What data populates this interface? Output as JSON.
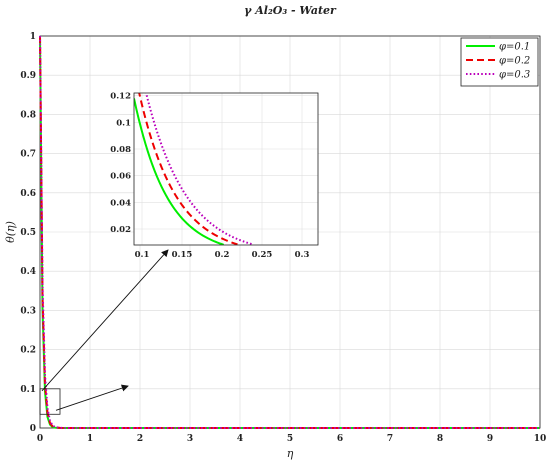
{
  "chart_data": {
    "type": "line",
    "title": "γ Al₂O₃ - Water",
    "xlabel": "η",
    "ylabel": "θ(η)",
    "xlim": [
      0,
      10
    ],
    "ylim": [
      0,
      1
    ],
    "xticks": [
      "0",
      "1",
      "2",
      "3",
      "4",
      "5",
      "6",
      "7",
      "8",
      "9",
      "10"
    ],
    "yticks": [
      "0",
      "0.1",
      "0.2",
      "0.3",
      "0.4",
      "0.5",
      "0.6",
      "0.7",
      "0.8",
      "0.9",
      "1"
    ],
    "grid": true,
    "legend_position": "top-right",
    "series": [
      {
        "name": "φ=0.1",
        "color": "#00ee00",
        "dash": "solid",
        "x": [
          0,
          0.05,
          0.1,
          0.15,
          0.2,
          0.25,
          0.3,
          0.4,
          0.5,
          0.7,
          1,
          2,
          3,
          4,
          5,
          6,
          7,
          8,
          9,
          10
        ],
        "y": [
          1,
          0.305,
          0.093,
          0.028,
          0.0086,
          0.0026,
          0.0008,
          0.0001,
          0,
          0,
          0,
          0,
          0,
          0,
          0,
          0,
          0,
          0,
          0,
          0
        ]
      },
      {
        "name": "φ=0.2",
        "color": "#ee0000",
        "dash": "dashed",
        "x": [
          0,
          0.05,
          0.1,
          0.15,
          0.2,
          0.25,
          0.3,
          0.4,
          0.5,
          0.7,
          1,
          2,
          3,
          4,
          5,
          6,
          7,
          8,
          9,
          10
        ],
        "y": [
          1,
          0.337,
          0.113,
          0.038,
          0.0129,
          0.0043,
          0.0015,
          0.0002,
          0,
          0,
          0,
          0,
          0,
          0,
          0,
          0,
          0,
          0,
          0,
          0
        ]
      },
      {
        "name": "φ=0.3",
        "color": "#bb00bb",
        "dash": "dotted",
        "x": [
          0,
          0.05,
          0.1,
          0.15,
          0.2,
          0.25,
          0.3,
          0.4,
          0.5,
          0.7,
          1,
          2,
          3,
          4,
          5,
          6,
          7,
          8,
          9,
          10
        ],
        "y": [
          1,
          0.367,
          0.135,
          0.05,
          0.0183,
          0.0067,
          0.0025,
          0.0003,
          0,
          0,
          0,
          0,
          0,
          0,
          0,
          0,
          0,
          0,
          0,
          0
        ]
      }
    ],
    "inset": {
      "xlim": [
        0.09,
        0.32
      ],
      "ylim": [
        0.008,
        0.122
      ],
      "xticks": [
        "0.1",
        "0.15",
        "0.2",
        "0.25",
        "0.3"
      ],
      "yticks": [
        "0.02",
        "0.04",
        "0.06",
        "0.08",
        "0.1",
        "0.12"
      ],
      "zoom_region": {
        "x": [
          0,
          0.4
        ],
        "y": [
          0.035,
          0.1
        ]
      }
    }
  }
}
